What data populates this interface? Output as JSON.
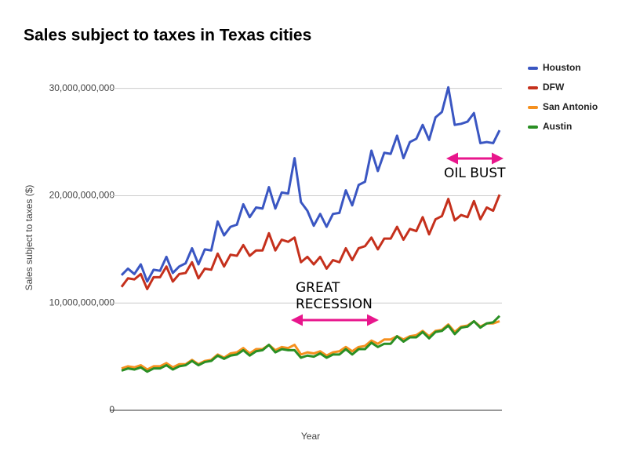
{
  "chart_data": {
    "type": "line",
    "title": "Sales subject to taxes in Texas cities",
    "xlabel": "Year",
    "ylabel": "Sales subject to taxes ($)",
    "ylim": [
      0,
      31000000000
    ],
    "yticks": [
      0,
      {
        "value": 10000000000,
        "label": "10,000,000,000"
      },
      {
        "value": 20000000000,
        "label": "20,000,000,000"
      },
      {
        "value": 30000000000,
        "label": "30,000,000,000"
      }
    ],
    "grid": true,
    "legend": "right",
    "annotations": [
      [
        "GREAT",
        "RECESSION"
      ],
      [
        "OIL BUST"
      ]
    ],
    "annotation_color": "#e8168c",
    "series": [
      {
        "name": "Houston",
        "color": "#3a56c2",
        "values": [
          12600000000,
          13200000000,
          12700000000,
          13600000000,
          12000000000,
          13100000000,
          13000000000,
          14300000000,
          12800000000,
          13400000000,
          13700000000,
          15100000000,
          13600000000,
          15000000000,
          14900000000,
          17600000000,
          16300000000,
          17100000000,
          17300000000,
          19200000000,
          18000000000,
          18900000000,
          18800000000,
          20800000000,
          18800000000,
          20300000000,
          20200000000,
          23500000000,
          19400000000,
          18600000000,
          17200000000,
          18300000000,
          17100000000,
          18300000000,
          18400000000,
          20500000000,
          19100000000,
          21000000000,
          21300000000,
          24200000000,
          22300000000,
          24000000000,
          23900000000,
          25600000000,
          23500000000,
          25000000000,
          25300000000,
          26600000000,
          25200000000,
          27300000000,
          27800000000,
          30100000000,
          26600000000,
          26700000000,
          26900000000,
          27700000000,
          24900000000,
          25000000000,
          24900000000,
          26100000000
        ]
      },
      {
        "name": "DFW",
        "color": "#c5301c",
        "values": [
          11500000000,
          12300000000,
          12200000000,
          12700000000,
          11300000000,
          12400000000,
          12400000000,
          13400000000,
          12000000000,
          12700000000,
          12800000000,
          13800000000,
          12300000000,
          13200000000,
          13100000000,
          14600000000,
          13400000000,
          14500000000,
          14400000000,
          15400000000,
          14400000000,
          14900000000,
          14900000000,
          16500000000,
          14900000000,
          15900000000,
          15700000000,
          16100000000,
          13800000000,
          14300000000,
          13600000000,
          14300000000,
          13200000000,
          14000000000,
          13800000000,
          15100000000,
          14000000000,
          15100000000,
          15300000000,
          16100000000,
          15000000000,
          16000000000,
          16000000000,
          17100000000,
          15900000000,
          16900000000,
          16700000000,
          18000000000,
          16400000000,
          17800000000,
          18100000000,
          19700000000,
          17700000000,
          18200000000,
          18000000000,
          19500000000,
          17800000000,
          18900000000,
          18600000000,
          20100000000
        ]
      },
      {
        "name": "San Antonio",
        "color": "#f5901e",
        "values": [
          3900000000,
          4100000000,
          4000000000,
          4200000000,
          3800000000,
          4100000000,
          4100000000,
          4400000000,
          4000000000,
          4300000000,
          4300000000,
          4700000000,
          4300000000,
          4600000000,
          4700000000,
          5200000000,
          4900000000,
          5300000000,
          5400000000,
          5800000000,
          5300000000,
          5700000000,
          5700000000,
          6100000000,
          5600000000,
          5900000000,
          5800000000,
          6100000000,
          5200000000,
          5400000000,
          5300000000,
          5500000000,
          5100000000,
          5400000000,
          5500000000,
          5900000000,
          5500000000,
          5900000000,
          6000000000,
          6500000000,
          6200000000,
          6600000000,
          6600000000,
          6900000000,
          6600000000,
          6900000000,
          7000000000,
          7400000000,
          6900000000,
          7400000000,
          7500000000,
          8000000000,
          7300000000,
          7800000000,
          7900000000,
          8300000000,
          7800000000,
          8100000000,
          8100000000,
          8300000000
        ]
      },
      {
        "name": "Austin",
        "color": "#2a8f24",
        "values": [
          3700000000,
          3900000000,
          3800000000,
          4000000000,
          3600000000,
          3900000000,
          3900000000,
          4200000000,
          3800000000,
          4100000000,
          4200000000,
          4600000000,
          4200000000,
          4500000000,
          4600000000,
          5100000000,
          4800000000,
          5100000000,
          5200000000,
          5600000000,
          5100000000,
          5500000000,
          5600000000,
          6100000000,
          5400000000,
          5700000000,
          5600000000,
          5600000000,
          4900000000,
          5100000000,
          5000000000,
          5300000000,
          4900000000,
          5200000000,
          5200000000,
          5700000000,
          5200000000,
          5700000000,
          5700000000,
          6300000000,
          5900000000,
          6200000000,
          6200000000,
          6900000000,
          6400000000,
          6800000000,
          6800000000,
          7300000000,
          6700000000,
          7300000000,
          7400000000,
          7900000000,
          7100000000,
          7700000000,
          7800000000,
          8300000000,
          7700000000,
          8100000000,
          8200000000,
          8800000000
        ]
      }
    ]
  }
}
